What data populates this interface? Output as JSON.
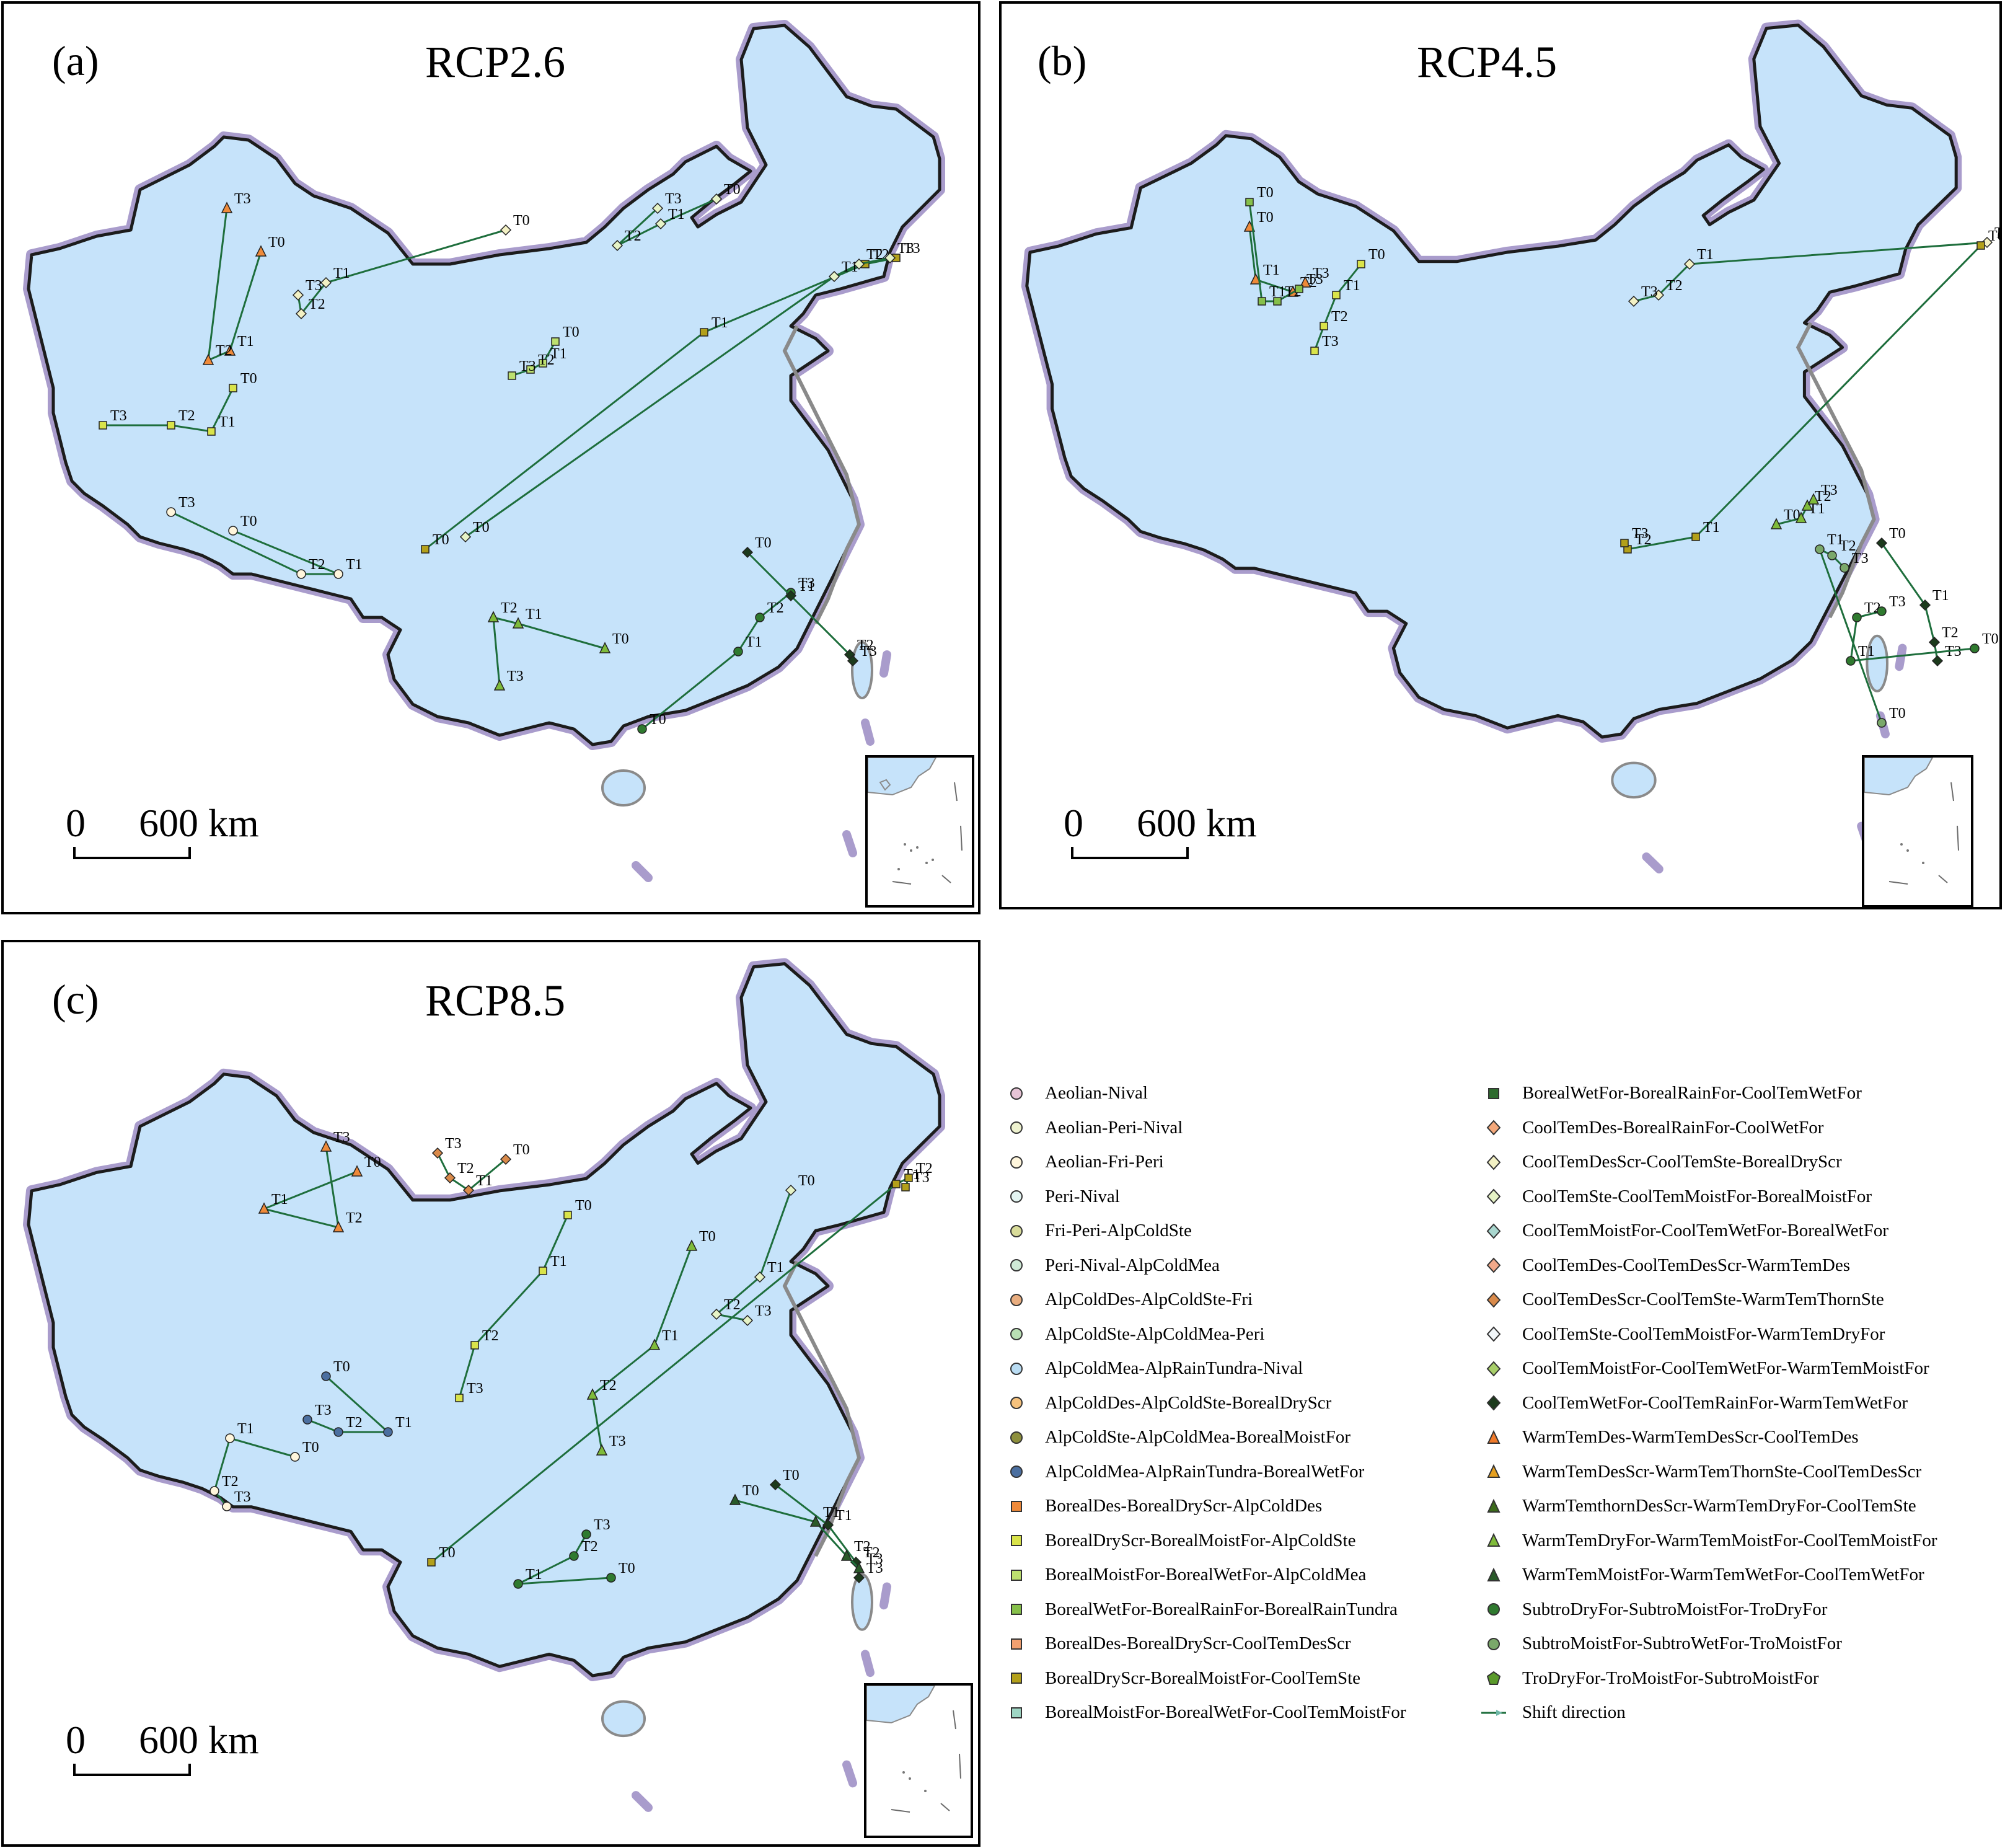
{
  "panels": [
    {
      "letter": "(a)",
      "title": "RCP2.6",
      "scale_zero": "0",
      "scale_text": "600 km"
    },
    {
      "letter": "(b)",
      "title": "RCP4.5",
      "scale_zero": "0",
      "scale_text": "600 km"
    },
    {
      "letter": "(c)",
      "title": "RCP8.5",
      "scale_zero": "0",
      "scale_text": "600 km"
    }
  ],
  "colors": {
    "land": "#c6e3fa",
    "border": "#1c1c1c",
    "border_halo": "#a99ccc",
    "track": "#1e6e3c",
    "arrow": "#6fb8a8",
    "coast": "#8a8a8a"
  },
  "legend": {
    "left": [
      {
        "label": "Aeolian-Nival",
        "shape": "circle",
        "color": "#e7c4d6"
      },
      {
        "label": "Aeolian-Peri-Nival",
        "shape": "circle",
        "color": "#eef2cf"
      },
      {
        "label": "Aeolian-Fri-Peri",
        "shape": "circle",
        "color": "#fff6dc"
      },
      {
        "label": "Peri-Nival",
        "shape": "circle",
        "color": "#e3f4f2"
      },
      {
        "label": "Fri-Peri-AlpColdSte",
        "shape": "circle",
        "color": "#d9dc9a"
      },
      {
        "label": "Peri-Nival-AlpColdMea",
        "shape": "circle",
        "color": "#cfe9d6"
      },
      {
        "label": "AlpColdDes-AlpColdSte-Fri",
        "shape": "circle",
        "color": "#e9ad7f"
      },
      {
        "label": "AlpColdSte-AlpColdMea-Peri",
        "shape": "circle",
        "color": "#b9dfb4"
      },
      {
        "label": "AlpColdMea-AlpRainTundra-Nival",
        "shape": "circle",
        "color": "#b9dcf3"
      },
      {
        "label": "AlpColdDes-AlpColdSte-BorealDryScr",
        "shape": "circle",
        "color": "#f6c27d"
      },
      {
        "label": "AlpColdSte-AlpColdMea-BorealMoistFor",
        "shape": "circle",
        "color": "#8d8f3c"
      },
      {
        "label": "AlpColdMea-AlpRainTundra-BorealWetFor",
        "shape": "circle",
        "color": "#4b6fa0"
      },
      {
        "label": "BorealDes-BorealDryScr-AlpColdDes",
        "shape": "square",
        "color": "#ef8a3a"
      },
      {
        "label": "BorealDryScr-BorealMoistFor-AlpColdSte",
        "shape": "square",
        "color": "#d9e34a"
      },
      {
        "label": "BorealMoistFor-BorealWetFor-AlpColdMea",
        "shape": "square",
        "color": "#bde06f"
      },
      {
        "label": "BorealWetFor-BorealRainFor-BorealRainTundra",
        "shape": "square",
        "color": "#86c04a"
      },
      {
        "label": "BorealDes-BorealDryScr-CoolTemDesScr",
        "shape": "square",
        "color": "#f2a070"
      },
      {
        "label": "BorealDryScr-BorealMoistFor-CoolTemSte",
        "shape": "square",
        "color": "#b3a01a"
      },
      {
        "label": "BorealMoistFor-BorealWetFor-CoolTemMoistFor",
        "shape": "square",
        "color": "#9fd6c4"
      }
    ],
    "right": [
      {
        "label": "BorealWetFor-BorealRainFor-CoolTemWetFor",
        "shape": "square",
        "color": "#2f6b2f"
      },
      {
        "label": "CoolTemDes-BorealRainFor-CoolWetFor",
        "shape": "diamond",
        "color": "#f4a87a"
      },
      {
        "label": "CoolTemDesScr-CoolTemSte-BorealDryScr",
        "shape": "diamond",
        "color": "#f3f1c4"
      },
      {
        "label": "CoolTemSte-CoolTemMoistFor-BorealMoistFor",
        "shape": "diamond",
        "color": "#e6f3c6"
      },
      {
        "label": "CoolTemMoistFor-CoolTemWetFor-BorealWetFor",
        "shape": "diamond",
        "color": "#a9d7cf"
      },
      {
        "label": "CoolTemDes-CoolTemDesScr-WarmTemDes",
        "shape": "diamond",
        "color": "#f2a98a"
      },
      {
        "label": "CoolTemDesScr-CoolTemSte-WarmTemThornSte",
        "shape": "diamond",
        "color": "#d98a4a"
      },
      {
        "label": "CoolTemSte-CoolTemMoistFor-WarmTemDryFor",
        "shape": "diamond",
        "color": "#f1f6f9"
      },
      {
        "label": "CoolTemMoistFor-CoolTemWetFor-WarmTemMoistFor",
        "shape": "diamond",
        "color": "#a8cf6a"
      },
      {
        "label": "CoolTemWetFor-CoolTemRainFor-WarmTemWetFor",
        "shape": "diamond",
        "color": "#1c3a1c"
      },
      {
        "label": "WarmTemDes-WarmTemDesScr-CoolTemDes",
        "shape": "triangle",
        "color": "#f07a2a"
      },
      {
        "label": "WarmTemDesScr-WarmTemThornSte-CoolTemDesScr",
        "shape": "triangle",
        "color": "#e5a020"
      },
      {
        "label": "WarmTemthornDesScr-WarmTemDryFor-CoolTemSte",
        "shape": "triangle",
        "color": "#3b6a1a"
      },
      {
        "label": "WarmTemDryFor-WarmTemMoistFor-CoolTemMoistFor",
        "shape": "triangle",
        "color": "#7fbb3a"
      },
      {
        "label": "WarmTemMoistFor-WarmTemWetFor-CoolTemWetFor",
        "shape": "triangle",
        "color": "#2a5a2a"
      },
      {
        "label": "SubtroDryFor-SubtroMoistFor-TroDryFor",
        "shape": "circle",
        "color": "#2f7a2f"
      },
      {
        "label": "SubtroMoistFor-SubtroWetFor-TroMoistFor",
        "shape": "circle",
        "color": "#7aa86a"
      },
      {
        "label": "TroDryFor-TroMoistFor-SubtroMoistFor",
        "shape": "pentagon",
        "color": "#5a9a2a"
      },
      {
        "label": "Shift direction",
        "shape": "line",
        "color": "#1e6e3c"
      }
    ]
  }
}
